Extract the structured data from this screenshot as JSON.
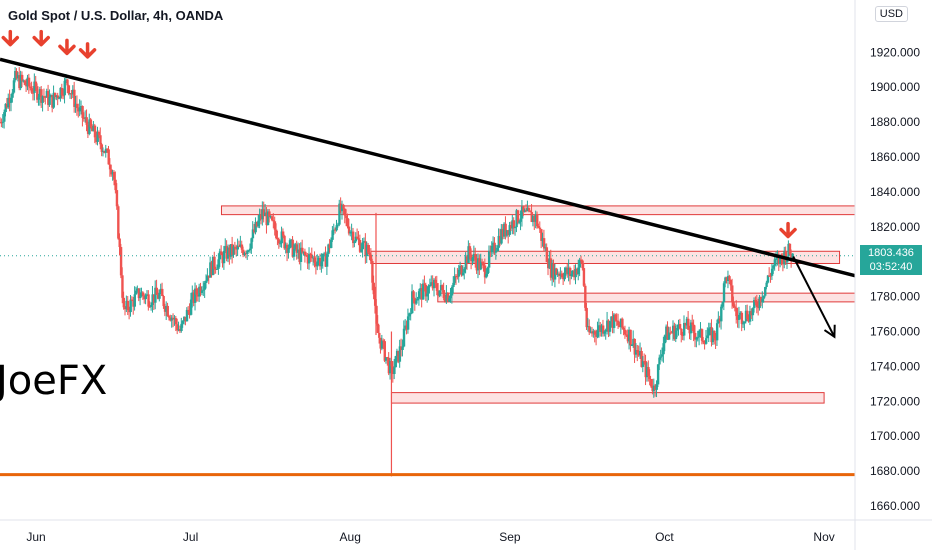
{
  "header": {
    "title": "Gold Spot / U.S. Dollar, 4h, OANDA",
    "currency": "USD"
  },
  "watermark": "JoeFX",
  "last_price": {
    "value": "1803.436",
    "countdown": "03:52:40"
  },
  "colors": {
    "up": "#26a69a",
    "down": "#ef5350",
    "zone_fill": "#fde2e2",
    "zone_stroke": "#e03a3a",
    "trendline": "#000000",
    "support_line": "#e8650a",
    "arrow": "#e8412e",
    "axis_text": "#131722"
  },
  "chart_data": {
    "type": "candlestick",
    "ylim": [
      1652,
      1950
    ],
    "y_ticks": [
      1660,
      1680,
      1700,
      1720,
      1740,
      1760,
      1780,
      1800,
      1820,
      1840,
      1860,
      1880,
      1900,
      1920
    ],
    "y_tick_labels": [
      "1660.000",
      "1680.000",
      "1700.000",
      "1720.000",
      "1740.000",
      "1760.000",
      "1780.000",
      "1800.000",
      "1820.000",
      "1840.000",
      "1860.000",
      "1880.000",
      "1900.000",
      "1920.000"
    ],
    "x_labels": [
      {
        "label": "Jun",
        "x": "2021-06-01"
      },
      {
        "label": "Jul",
        "x": "2021-07-01"
      },
      {
        "label": "Aug",
        "x": "2021-08-01"
      },
      {
        "label": "Sep",
        "x": "2021-09-01"
      },
      {
        "label": "Oct",
        "x": "2021-10-01"
      },
      {
        "label": "Nov",
        "x": "2021-11-01"
      }
    ],
    "xlim": [
      "2021-05-25",
      "2021-11-07"
    ],
    "price_path": [
      [
        "2021-05-25",
        1880
      ],
      [
        "2021-05-28",
        1905
      ],
      [
        "2021-06-01",
        1898
      ],
      [
        "2021-06-04",
        1892
      ],
      [
        "2021-06-07",
        1903
      ],
      [
        "2021-06-09",
        1888
      ],
      [
        "2021-06-11",
        1878
      ],
      [
        "2021-06-14",
        1866
      ],
      [
        "2021-06-16",
        1852
      ],
      [
        "2021-06-17",
        1815
      ],
      [
        "2021-06-18",
        1771
      ],
      [
        "2021-06-21",
        1782
      ],
      [
        "2021-06-23",
        1779
      ],
      [
        "2021-06-25",
        1781
      ],
      [
        "2021-06-29",
        1760
      ],
      [
        "2021-07-01",
        1776
      ],
      [
        "2021-07-05",
        1797
      ],
      [
        "2021-07-08",
        1805
      ],
      [
        "2021-07-12",
        1808
      ],
      [
        "2021-07-15",
        1828
      ],
      [
        "2021-07-19",
        1812
      ],
      [
        "2021-07-22",
        1804
      ],
      [
        "2021-07-27",
        1800
      ],
      [
        "2021-07-30",
        1830
      ],
      [
        "2021-08-02",
        1813
      ],
      [
        "2021-08-05",
        1804
      ],
      [
        "2021-08-06",
        1762
      ],
      [
        "2021-08-09",
        1736
      ],
      [
        "2021-08-11",
        1752
      ],
      [
        "2021-08-13",
        1779
      ],
      [
        "2021-08-17",
        1786
      ],
      [
        "2021-08-20",
        1781
      ],
      [
        "2021-08-24",
        1805
      ],
      [
        "2021-08-27",
        1795
      ],
      [
        "2021-08-30",
        1815
      ],
      [
        "2021-09-03",
        1827
      ],
      [
        "2021-09-06",
        1825
      ],
      [
        "2021-09-09",
        1795
      ],
      [
        "2021-09-13",
        1793
      ],
      [
        "2021-09-15",
        1800
      ],
      [
        "2021-09-16",
        1758
      ],
      [
        "2021-09-21",
        1766
      ],
      [
        "2021-09-24",
        1759
      ],
      [
        "2021-09-29",
        1727
      ],
      [
        "2021-10-01",
        1758
      ],
      [
        "2021-10-05",
        1763
      ],
      [
        "2021-10-08",
        1757
      ],
      [
        "2021-10-11",
        1758
      ],
      [
        "2021-10-13",
        1793
      ],
      [
        "2021-10-15",
        1768
      ],
      [
        "2021-10-18",
        1771
      ],
      [
        "2021-10-20",
        1782
      ],
      [
        "2021-10-22",
        1797
      ],
      [
        "2021-10-25",
        1806
      ],
      [
        "2021-10-26",
        1803
      ]
    ],
    "special_wicks": [
      {
        "x": "2021-08-09",
        "low": 1677,
        "high": 1760
      },
      {
        "x": "2021-08-06",
        "low": 1758,
        "high": 1828
      }
    ],
    "zones": [
      {
        "from": "2021-07-07",
        "to": "2021-11-07",
        "low": 1827,
        "high": 1832
      },
      {
        "from": "2021-08-05",
        "to": "2021-11-04",
        "low": 1799,
        "high": 1806
      },
      {
        "from": "2021-08-18",
        "to": "2021-11-07",
        "low": 1777,
        "high": 1782
      },
      {
        "from": "2021-08-09",
        "to": "2021-11-01",
        "low": 1719,
        "high": 1725
      }
    ],
    "trendline": {
      "from": [
        "2021-05-25",
        1916
      ],
      "to": [
        "2021-11-07",
        1792
      ]
    },
    "support_line": {
      "from": [
        "2021-05-25",
        1678
      ],
      "to": [
        "2021-11-07",
        1678
      ]
    },
    "projection_arrow": {
      "from": [
        "2021-10-26",
        1803
      ],
      "to": [
        "2021-11-03",
        1757
      ]
    },
    "down_markers": [
      {
        "x": "2021-05-27",
        "y": 1925
      },
      {
        "x": "2021-06-02",
        "y": 1925
      },
      {
        "x": "2021-06-07",
        "y": 1920
      },
      {
        "x": "2021-06-11",
        "y": 1918
      },
      {
        "x": "2021-10-25",
        "y": 1815
      }
    ],
    "last_price_line": 1803.4
  }
}
